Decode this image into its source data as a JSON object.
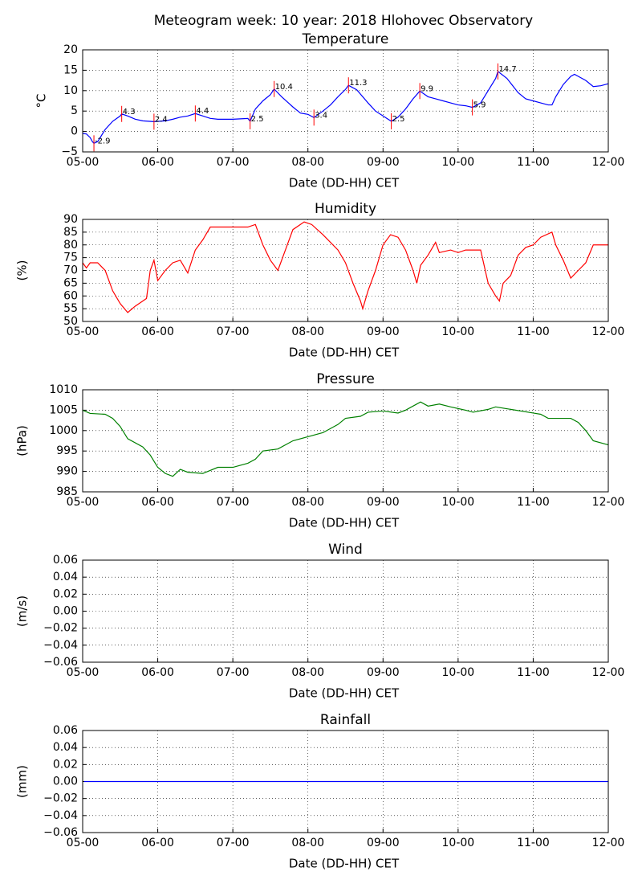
{
  "title": "Meteogram week: 10 year: 2018 Hlohovec Observatory",
  "chart_data": [
    {
      "type": "line",
      "title": "Temperature",
      "xlabel": "Date (DD-HH) CET",
      "ylabel": "°C",
      "xlim": [
        5,
        12
      ],
      "xticks": [
        {
          "value": 5,
          "label": "05-00"
        },
        {
          "value": 6,
          "label": "06-00"
        },
        {
          "value": 7,
          "label": "07-00"
        },
        {
          "value": 8,
          "label": "08-00"
        },
        {
          "value": 9,
          "label": "09-00"
        },
        {
          "value": 10,
          "label": "10-00"
        },
        {
          "value": 11,
          "label": "11-00"
        },
        {
          "value": 12,
          "label": "12-00"
        }
      ],
      "ylim": [
        -5,
        20
      ],
      "yticks": [
        {
          "value": -5,
          "label": "−5"
        },
        0,
        5,
        10,
        15,
        20
      ],
      "grid": true,
      "series": [
        {
          "color": "#0000ff",
          "x": [
            5.0,
            5.05,
            5.1,
            5.13,
            5.15,
            5.2,
            5.3,
            5.4,
            5.5,
            5.52,
            5.6,
            5.7,
            5.8,
            5.95,
            6.1,
            6.2,
            6.3,
            6.4,
            6.5,
            6.6,
            6.7,
            6.8,
            7.0,
            7.1,
            7.2,
            7.23,
            7.3,
            7.4,
            7.5,
            7.55,
            7.65,
            7.8,
            7.9,
            8.0,
            8.08,
            8.2,
            8.3,
            8.4,
            8.5,
            8.54,
            8.65,
            8.8,
            8.9,
            9.0,
            9.11,
            9.2,
            9.3,
            9.4,
            9.49,
            9.6,
            9.7,
            9.8,
            9.9,
            10.0,
            10.1,
            10.19,
            10.3,
            10.4,
            10.5,
            10.53,
            10.65,
            10.8,
            10.9,
            11.0,
            11.1,
            11.2,
            11.25,
            11.3,
            11.4,
            11.5,
            11.55,
            11.6,
            11.7,
            11.8,
            11.9,
            12.0
          ],
          "values": [
            -0.5,
            -0.6,
            -1.5,
            -2.5,
            -2.9,
            -2.5,
            0.5,
            2.5,
            3.8,
            4.3,
            3.8,
            3.0,
            2.6,
            2.4,
            2.6,
            3.0,
            3.5,
            3.8,
            4.4,
            3.8,
            3.2,
            3.0,
            3.0,
            3.1,
            3.2,
            2.5,
            5.5,
            7.5,
            9.0,
            10.4,
            8.5,
            6.0,
            4.5,
            4.2,
            3.4,
            5.0,
            6.5,
            8.5,
            10.3,
            11.3,
            10.2,
            7.0,
            5.0,
            3.8,
            2.5,
            3.5,
            5.5,
            8.0,
            9.9,
            8.5,
            8.0,
            7.5,
            7.0,
            6.5,
            6.3,
            5.9,
            7.0,
            10.0,
            13.0,
            14.7,
            13.0,
            9.5,
            8.0,
            7.5,
            7.0,
            6.5,
            6.5,
            8.5,
            11.5,
            13.5,
            14.0,
            13.5,
            12.5,
            11.0,
            11.2,
            11.7
          ]
        }
      ],
      "annotations": [
        {
          "x": 5.15,
          "y": -2.9
        },
        {
          "x": 5.52,
          "y": 4.3
        },
        {
          "x": 5.95,
          "y": 2.4
        },
        {
          "x": 6.5,
          "y": 4.4
        },
        {
          "x": 7.23,
          "y": 2.5
        },
        {
          "x": 7.55,
          "y": 10.4
        },
        {
          "x": 8.08,
          "y": 3.4
        },
        {
          "x": 8.54,
          "y": 11.3
        },
        {
          "x": 9.11,
          "y": 2.5
        },
        {
          "x": 9.49,
          "y": 9.9
        },
        {
          "x": 10.19,
          "y": 5.9
        },
        {
          "x": 10.53,
          "y": 14.7
        }
      ],
      "annotation_color": "#ff0000"
    },
    {
      "type": "line",
      "title": "Humidity",
      "xlabel": "Date (DD-HH) CET",
      "ylabel": "(%)",
      "xlim": [
        5,
        12
      ],
      "xticks": [
        {
          "value": 5,
          "label": "05-00"
        },
        {
          "value": 6,
          "label": "06-00"
        },
        {
          "value": 7,
          "label": "07-00"
        },
        {
          "value": 8,
          "label": "08-00"
        },
        {
          "value": 9,
          "label": "09-00"
        },
        {
          "value": 10,
          "label": "10-00"
        },
        {
          "value": 11,
          "label": "11-00"
        },
        {
          "value": 12,
          "label": "12-00"
        }
      ],
      "ylim": [
        50,
        90
      ],
      "yticks": [
        50,
        55,
        60,
        65,
        70,
        75,
        80,
        85,
        90
      ],
      "grid": true,
      "series": [
        {
          "color": "#ff0000",
          "x": [
            5.0,
            5.05,
            5.1,
            5.2,
            5.3,
            5.4,
            5.5,
            5.6,
            5.7,
            5.8,
            5.85,
            5.9,
            5.95,
            6.0,
            6.1,
            6.2,
            6.3,
            6.4,
            6.5,
            6.6,
            6.7,
            7.0,
            7.2,
            7.3,
            7.4,
            7.5,
            7.6,
            7.7,
            7.8,
            7.95,
            8.05,
            8.2,
            8.4,
            8.5,
            8.6,
            8.7,
            8.73,
            8.8,
            8.9,
            9.0,
            9.1,
            9.2,
            9.3,
            9.4,
            9.45,
            9.5,
            9.6,
            9.7,
            9.75,
            9.9,
            10.0,
            10.1,
            10.3,
            10.4,
            10.5,
            10.55,
            10.6,
            10.7,
            10.8,
            10.9,
            11.0,
            11.1,
            11.25,
            11.3,
            11.4,
            11.5,
            11.6,
            11.7,
            11.8,
            11.9,
            12.0
          ],
          "values": [
            73,
            71,
            73,
            73,
            70,
            62,
            57,
            53.5,
            56,
            58,
            59,
            70,
            74,
            66,
            70,
            73,
            74,
            69,
            78,
            82,
            87,
            87,
            87,
            88,
            80,
            74,
            70,
            78,
            86,
            89,
            88,
            84,
            78,
            73,
            65,
            58,
            55,
            62,
            70,
            80,
            84,
            83,
            78,
            70,
            65,
            72,
            76,
            81,
            77,
            78,
            77,
            78,
            78,
            65,
            60,
            58,
            65,
            68,
            76,
            79,
            80,
            83,
            85,
            80,
            74,
            67,
            70,
            73,
            80,
            80,
            80
          ]
        }
      ]
    },
    {
      "type": "line",
      "title": "Pressure",
      "xlabel": "Date (DD-HH) CET",
      "ylabel": "(hPa)",
      "xlim": [
        5,
        12
      ],
      "xticks": [
        {
          "value": 5,
          "label": "05-00"
        },
        {
          "value": 6,
          "label": "06-00"
        },
        {
          "value": 7,
          "label": "07-00"
        },
        {
          "value": 8,
          "label": "08-00"
        },
        {
          "value": 9,
          "label": "09-00"
        },
        {
          "value": 10,
          "label": "10-00"
        },
        {
          "value": 11,
          "label": "11-00"
        },
        {
          "value": 12,
          "label": "12-00"
        }
      ],
      "ylim": [
        985,
        1010
      ],
      "yticks": [
        985,
        990,
        995,
        1000,
        1005,
        1010
      ],
      "grid": true,
      "series": [
        {
          "color": "#008000",
          "x": [
            5.0,
            5.1,
            5.3,
            5.4,
            5.5,
            5.6,
            5.8,
            5.9,
            6.0,
            6.1,
            6.2,
            6.3,
            6.4,
            6.6,
            6.8,
            7.0,
            7.2,
            7.3,
            7.4,
            7.6,
            7.8,
            8.0,
            8.2,
            8.4,
            8.5,
            8.7,
            8.8,
            9.0,
            9.2,
            9.3,
            9.5,
            9.6,
            9.75,
            9.9,
            10.1,
            10.2,
            10.4,
            10.5,
            10.7,
            11.0,
            11.1,
            11.2,
            11.5,
            11.6,
            11.7,
            11.8,
            12.0
          ],
          "values": [
            1005,
            1004.2,
            1004,
            1003,
            1001,
            998,
            996,
            994,
            991,
            989.5,
            988.8,
            990.5,
            989.8,
            989.5,
            991,
            991,
            992,
            993,
            995,
            995.5,
            997.5,
            998.5,
            999.5,
            1001.5,
            1003,
            1003.5,
            1004.5,
            1004.8,
            1004.3,
            1005,
            1007,
            1006,
            1006.5,
            1005.8,
            1005,
            1004.5,
            1005.2,
            1005.8,
            1005.2,
            1004.3,
            1004,
            1003,
            1003,
            1002,
            1000,
            997.5,
            996.5
          ]
        }
      ]
    },
    {
      "type": "line",
      "title": "Wind",
      "xlabel": "Date (DD-HH) CET",
      "ylabel": "(m/s)",
      "xlim": [
        5,
        12
      ],
      "xticks": [
        {
          "value": 5,
          "label": "05-00"
        },
        {
          "value": 6,
          "label": "06-00"
        },
        {
          "value": 7,
          "label": "07-00"
        },
        {
          "value": 8,
          "label": "08-00"
        },
        {
          "value": 9,
          "label": "09-00"
        },
        {
          "value": 10,
          "label": "10-00"
        },
        {
          "value": 11,
          "label": "11-00"
        },
        {
          "value": 12,
          "label": "12-00"
        }
      ],
      "ylim": [
        -0.06,
        0.06
      ],
      "yticks": [
        {
          "value": -0.06,
          "label": "−0.06"
        },
        {
          "value": -0.04,
          "label": "−0.04"
        },
        {
          "value": -0.02,
          "label": "−0.02"
        },
        {
          "value": 0,
          "label": "0.00"
        },
        0.02,
        0.04,
        0.06
      ],
      "grid": true,
      "series": []
    },
    {
      "type": "line",
      "title": "Rainfall",
      "xlabel": "Date (DD-HH) CET",
      "ylabel": "(mm)",
      "xlim": [
        5,
        12
      ],
      "xticks": [
        {
          "value": 5,
          "label": "05-00"
        },
        {
          "value": 6,
          "label": "06-00"
        },
        {
          "value": 7,
          "label": "07-00"
        },
        {
          "value": 8,
          "label": "08-00"
        },
        {
          "value": 9,
          "label": "09-00"
        },
        {
          "value": 10,
          "label": "10-00"
        },
        {
          "value": 11,
          "label": "11-00"
        },
        {
          "value": 12,
          "label": "12-00"
        }
      ],
      "ylim": [
        -0.06,
        0.06
      ],
      "yticks": [
        {
          "value": -0.06,
          "label": "−0.06"
        },
        {
          "value": -0.04,
          "label": "−0.04"
        },
        {
          "value": -0.02,
          "label": "−0.02"
        },
        {
          "value": 0,
          "label": "0.00"
        },
        0.02,
        0.04,
        0.06
      ],
      "grid": true,
      "series": [
        {
          "color": "#0000ff",
          "x": [
            5.02,
            12.0
          ],
          "values": [
            0,
            0
          ]
        }
      ]
    }
  ]
}
